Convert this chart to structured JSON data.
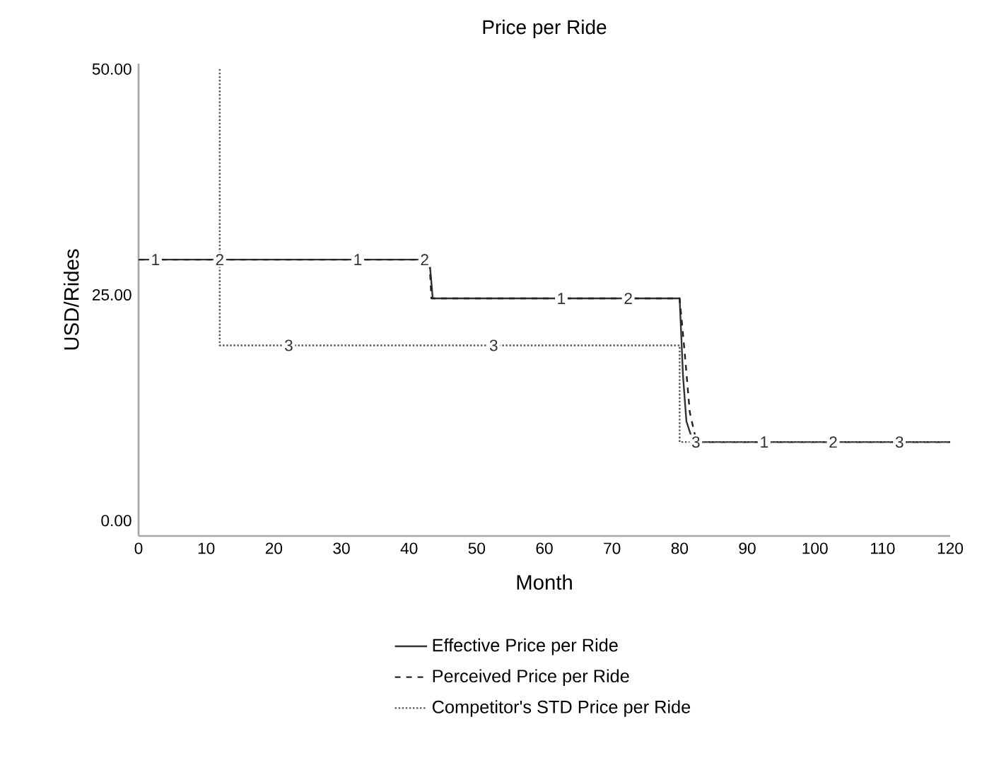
{
  "chart_data": {
    "type": "line",
    "title": "Price per Ride",
    "xlabel": "Month",
    "ylabel": "USD/Rides",
    "xlim": [
      0,
      120
    ],
    "xticks": [
      0,
      10,
      20,
      30,
      40,
      50,
      60,
      70,
      80,
      90,
      100,
      110,
      120
    ],
    "ylim": [
      -1.7,
      50.6
    ],
    "yticks": [
      {
        "value": 0,
        "label": "0.00"
      },
      {
        "value": 25,
        "label": "25.00"
      },
      {
        "value": 50,
        "label": "50.00"
      }
    ],
    "grid": false,
    "legend": "bottom",
    "marker": "none",
    "series": [
      {
        "name": "Effective Price per Ride",
        "color": "#333333",
        "line_style": "solid",
        "x": [
          0,
          43,
          43.5,
          80,
          80.5,
          81,
          82,
          120
        ],
        "values": [
          28.9,
          28.9,
          24.6,
          24.6,
          16,
          11,
          8.7,
          8.7
        ]
      },
      {
        "name": "Perceived Price per Ride",
        "color": "#222222",
        "line_style": "dashed",
        "x": [
          0,
          43,
          43.3,
          80,
          80.7,
          81.5,
          82.5,
          120
        ],
        "values": [
          28.9,
          28.9,
          24.6,
          24.6,
          19,
          12,
          8.7,
          8.7
        ]
      },
      {
        "name": "Competitor's STD Price per Ride",
        "color": "#555555",
        "line_style": "dotted",
        "x": [
          12,
          12,
          80,
          80,
          120
        ],
        "values": [
          50,
          19.4,
          19.4,
          8.7,
          8.7
        ]
      }
    ],
    "annotations": [
      {
        "text": "1",
        "x": 2.5,
        "y": 28.9
      },
      {
        "text": "2",
        "x": 12,
        "y": 28.9
      },
      {
        "text": "1",
        "x": 32.4,
        "y": 28.9
      },
      {
        "text": "2",
        "x": 42.3,
        "y": 28.9
      },
      {
        "text": "1",
        "x": 62.5,
        "y": 24.6
      },
      {
        "text": "2",
        "x": 72.4,
        "y": 24.6
      },
      {
        "text": "3",
        "x": 22.2,
        "y": 19.4
      },
      {
        "text": "3",
        "x": 52.5,
        "y": 19.4
      },
      {
        "text": "3",
        "x": 82.4,
        "y": 8.7
      },
      {
        "text": "1",
        "x": 92.5,
        "y": 8.7
      },
      {
        "text": "2",
        "x": 102.7,
        "y": 8.7
      },
      {
        "text": "3",
        "x": 112.5,
        "y": 8.7
      }
    ]
  }
}
